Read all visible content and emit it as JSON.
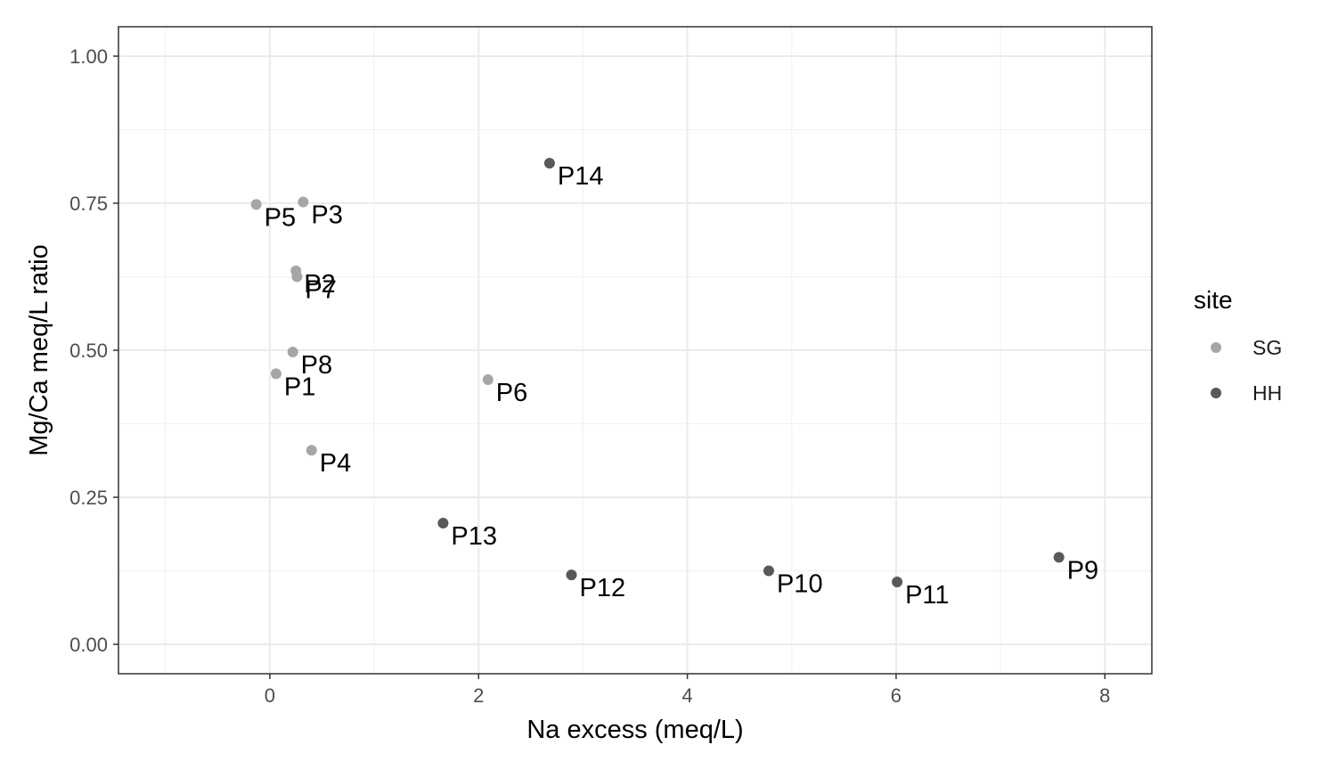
{
  "chart_data": {
    "type": "scatter",
    "xlabel": "Na excess (meq/L)",
    "ylabel": "Mg/Ca meq/L ratio",
    "xlim": [
      -1.45,
      8.45
    ],
    "ylim": [
      -0.05,
      1.05
    ],
    "x_ticks": [
      0,
      2,
      4,
      6,
      8
    ],
    "x_tick_labels": [
      "0",
      "2",
      "4",
      "6",
      "8"
    ],
    "y_ticks": [
      0,
      0.25,
      0.5,
      0.75,
      1.0
    ],
    "y_tick_labels": [
      "0.00",
      "0.25",
      "0.50",
      "0.75",
      "1.00"
    ],
    "grid": true,
    "legend": {
      "title": "site",
      "placement": "right",
      "entries": [
        {
          "name": "SG",
          "color": "#a6a6a6"
        },
        {
          "name": "HH",
          "color": "#595959"
        }
      ]
    },
    "series": [
      {
        "name": "SG",
        "color": "#a6a6a6",
        "points": [
          {
            "label": "P1",
            "x": 0.06,
            "y": 0.46
          },
          {
            "label": "P2",
            "x": 0.25,
            "y": 0.635
          },
          {
            "label": "P3",
            "x": 0.32,
            "y": 0.752
          },
          {
            "label": "P4",
            "x": 0.4,
            "y": 0.33
          },
          {
            "label": "P5",
            "x": -0.13,
            "y": 0.748
          },
          {
            "label": "P6",
            "x": 2.09,
            "y": 0.45
          },
          {
            "label": "P7",
            "x": 0.26,
            "y": 0.625
          },
          {
            "label": "P8",
            "x": 0.22,
            "y": 0.497
          }
        ]
      },
      {
        "name": "HH",
        "color": "#595959",
        "points": [
          {
            "label": "P9",
            "x": 7.56,
            "y": 0.148
          },
          {
            "label": "P10",
            "x": 4.78,
            "y": 0.125
          },
          {
            "label": "P11",
            "x": 6.01,
            "y": 0.106
          },
          {
            "label": "P12",
            "x": 2.89,
            "y": 0.118
          },
          {
            "label": "P13",
            "x": 1.66,
            "y": 0.206
          },
          {
            "label": "P14",
            "x": 2.68,
            "y": 0.818
          }
        ]
      }
    ]
  }
}
